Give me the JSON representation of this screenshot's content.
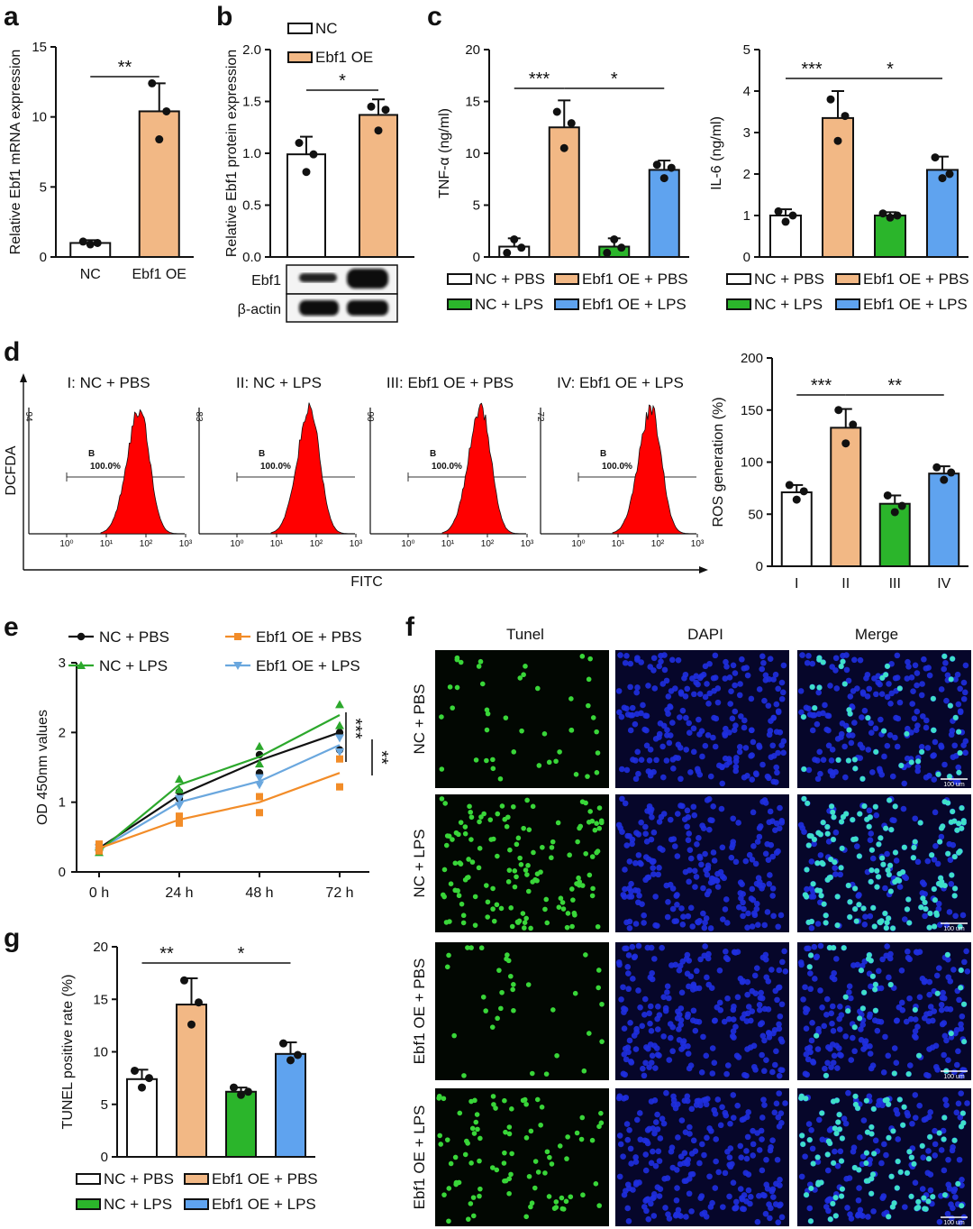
{
  "colors": {
    "NC": "#ffffff",
    "Ebf1 OE": "#f2b885",
    "NC + PBS": "#ffffff",
    "Ebf1 OE + PBS": "#f2b885",
    "NC + LPS": "#2bb52b",
    "Ebf1 OE + LPS": "#5fa3ef",
    "line_NC + PBS": "#111111",
    "line_Ebf1 OE + PBS": "#f28c28",
    "line_NC + LPS": "#2ca82c",
    "line_Ebf1 OE + LPS": "#6aa7de",
    "histogram": "#ff0000"
  },
  "panels": {
    "a": "a",
    "b": "b",
    "c": "c",
    "d": "d",
    "e": "e",
    "f": "f",
    "g": "g"
  },
  "blot": {
    "rows": [
      "Ebf1",
      "β-actin"
    ]
  },
  "flow": {
    "ylabel": "DCFDA",
    "xlabel": "FITC",
    "gate_name": "B",
    "gate_pct": "100.0%",
    "x_ticks": [
      "10⁰",
      "10¹",
      "10²",
      "10³"
    ],
    "panels": [
      {
        "title": "I: NC + PBS",
        "ymax": "94"
      },
      {
        "title": "II: NC + LPS",
        "ymax": "83"
      },
      {
        "title": "III: Ebf1 OE + PBS",
        "ymax": "90"
      },
      {
        "title": "IV: Ebf1 OE + LPS",
        "ymax": "72"
      }
    ]
  },
  "tunel": {
    "columns": [
      "Tunel",
      "DAPI",
      "Merge"
    ],
    "rows": [
      "NC + PBS",
      "NC + LPS",
      "Ebf1 OE + PBS",
      "Ebf1 OE + LPS"
    ],
    "scalebar": "100 um",
    "relative_density": [
      0.35,
      1.0,
      0.3,
      0.7
    ]
  },
  "chart_data": [
    {
      "id": "a",
      "type": "bar",
      "categories": [
        "NC",
        "Ebf1 OE"
      ],
      "values": [
        1.0,
        10.4
      ],
      "errors": [
        0.2,
        2.0
      ],
      "points": [
        [
          1.1,
          0.9,
          1.0
        ],
        [
          12.4,
          8.4,
          10.4
        ]
      ],
      "ylabel": "Relative Ebf1 mRNA expression",
      "ylim": [
        0,
        15
      ],
      "yticks": [
        "0",
        "5",
        "10",
        "15"
      ],
      "significance": [
        {
          "from": 0,
          "to": 1,
          "label": "**"
        }
      ]
    },
    {
      "id": "b",
      "type": "bar",
      "categories": [
        "NC",
        "Ebf1 OE"
      ],
      "values": [
        0.99,
        1.37
      ],
      "errors": [
        0.17,
        0.15
      ],
      "points": [
        [
          1.1,
          0.82,
          0.99
        ],
        [
          1.45,
          1.22,
          1.42
        ]
      ],
      "ylabel": "Relative Ebf1 protein expression",
      "ylim": [
        0,
        2.0
      ],
      "yticks": [
        "0.0",
        "0.5",
        "1.0",
        "1.5",
        "2.0"
      ],
      "legend": [
        "NC",
        "Ebf1 OE"
      ],
      "significance": [
        {
          "from": 0,
          "to": 1,
          "label": "*"
        }
      ]
    },
    {
      "id": "c1",
      "type": "bar",
      "categories": [
        "NC + PBS",
        "Ebf1 OE + PBS",
        "NC + LPS",
        "Ebf1 OE + LPS"
      ],
      "values": [
        1.0,
        12.5,
        1.0,
        8.4
      ],
      "errors": [
        0.8,
        2.6,
        0.8,
        0.9
      ],
      "points": [
        [
          0.4,
          1.7,
          0.9
        ],
        [
          14.0,
          10.5,
          12.9
        ],
        [
          0.4,
          1.7,
          0.9
        ],
        [
          8.9,
          7.6,
          8.6
        ]
      ],
      "ylabel": "TNF-α (ng/ml)",
      "ylim": [
        0,
        20
      ],
      "yticks": [
        "0",
        "5",
        "10",
        "15",
        "20"
      ],
      "legend": [
        "NC + PBS",
        "Ebf1 OE + PBS",
        "NC + LPS",
        "Ebf1 OE + LPS"
      ],
      "significance": [
        {
          "from": 0,
          "to": 1,
          "label": "***"
        },
        {
          "from": 1,
          "to": 3,
          "label": "*"
        }
      ]
    },
    {
      "id": "c2",
      "type": "bar",
      "categories": [
        "NC + PBS",
        "Ebf1 OE + PBS",
        "NC + LPS",
        "Ebf1 OE + LPS"
      ],
      "values": [
        1.0,
        3.35,
        1.0,
        2.1
      ],
      "errors": [
        0.15,
        0.65,
        0.08,
        0.32
      ],
      "points": [
        [
          1.1,
          0.85,
          1.0
        ],
        [
          3.8,
          2.8,
          3.4
        ],
        [
          1.05,
          0.95,
          1.0
        ],
        [
          2.4,
          1.9,
          2.0
        ]
      ],
      "ylabel": "IL-6 (ng/ml)",
      "ylim": [
        0,
        5
      ],
      "yticks": [
        "0",
        "1",
        "2",
        "3",
        "4",
        "5"
      ],
      "legend": [
        "NC + PBS",
        "Ebf1 OE + PBS",
        "NC + LPS",
        "Ebf1 OE + LPS"
      ],
      "significance": [
        {
          "from": 0,
          "to": 1,
          "label": "***"
        },
        {
          "from": 1,
          "to": 3,
          "label": "*"
        }
      ]
    },
    {
      "id": "d",
      "type": "bar",
      "categories": [
        "I",
        "II",
        "III",
        "IV"
      ],
      "series_keys": [
        "NC + PBS",
        "Ebf1 OE + PBS",
        "NC + LPS",
        "Ebf1 OE + LPS"
      ],
      "values": [
        71,
        133,
        60,
        89
      ],
      "errors": [
        7,
        18,
        8,
        7
      ],
      "points": [
        [
          78,
          64,
          72
        ],
        [
          150,
          118,
          136
        ],
        [
          68,
          52,
          58
        ],
        [
          95,
          83,
          90
        ]
      ],
      "ylabel": "ROS generation  (%)",
      "ylim": [
        0,
        200
      ],
      "yticks": [
        "0",
        "50",
        "100",
        "150",
        "200"
      ],
      "significance": [
        {
          "from": 0,
          "to": 1,
          "label": "***"
        },
        {
          "from": 1,
          "to": 3,
          "label": "**"
        }
      ]
    },
    {
      "id": "e",
      "type": "line",
      "x": [
        "0 h",
        "24 h",
        "48 h",
        "72 h"
      ],
      "ylabel": "OD 450nm values",
      "ylim": [
        0,
        3
      ],
      "yticks": [
        "0",
        "1",
        "2",
        "3"
      ],
      "series": [
        {
          "name": "NC + PBS",
          "values": [
            0.34,
            1.1,
            1.6,
            2.0
          ],
          "points": [
            [
              0.38,
              0.3
            ],
            [
              1.15,
              1.05
            ],
            [
              1.68,
              1.42
            ],
            [
              2.0,
              1.75
            ]
          ],
          "marker": "circle"
        },
        {
          "name": "Ebf1 OE + PBS",
          "values": [
            0.34,
            0.75,
            1.0,
            1.42
          ],
          "points": [
            [
              0.4,
              0.3
            ],
            [
              0.8,
              0.7
            ],
            [
              1.08,
              0.85
            ],
            [
              1.62,
              1.22
            ]
          ],
          "marker": "square"
        },
        {
          "name": "NC + LPS",
          "values": [
            0.3,
            1.25,
            1.65,
            2.25
          ],
          "points": [
            [
              0.36,
              0.28
            ],
            [
              1.33,
              1.18
            ],
            [
              1.8,
              1.55
            ],
            [
              2.4,
              2.1
            ]
          ],
          "marker": "triangle-up"
        },
        {
          "name": "Ebf1 OE + LPS",
          "values": [
            0.32,
            1.0,
            1.3,
            1.82
          ],
          "points": [
            [
              0.35,
              0.3
            ],
            [
              1.05,
              0.95
            ],
            [
              1.35,
              1.25
            ],
            [
              1.92,
              1.72
            ]
          ],
          "marker": "triangle-down"
        }
      ],
      "significance": [
        {
          "label": "***"
        },
        {
          "label": "**"
        }
      ]
    },
    {
      "id": "g",
      "type": "bar",
      "categories": [
        "NC + PBS",
        "Ebf1 OE + PBS",
        "NC + LPS",
        "Ebf1 OE + LPS"
      ],
      "values": [
        7.4,
        14.5,
        6.2,
        9.8
      ],
      "errors": [
        0.9,
        2.5,
        0.4,
        1.1
      ],
      "points": [
        [
          8.2,
          6.6,
          7.5
        ],
        [
          16.8,
          12.6,
          14.7
        ],
        [
          6.6,
          5.9,
          6.2
        ],
        [
          10.8,
          9.2,
          9.7
        ]
      ],
      "ylabel": "TUNEL positive rate (%)",
      "ylim": [
        0,
        20
      ],
      "yticks": [
        "0",
        "5",
        "10",
        "15",
        "20"
      ],
      "legend": [
        "NC + PBS",
        "Ebf1 OE + PBS",
        "NC + LPS",
        "Ebf1 OE + LPS"
      ],
      "significance": [
        {
          "from": 0,
          "to": 1,
          "label": "**"
        },
        {
          "from": 1,
          "to": 3,
          "label": "*"
        }
      ]
    }
  ]
}
